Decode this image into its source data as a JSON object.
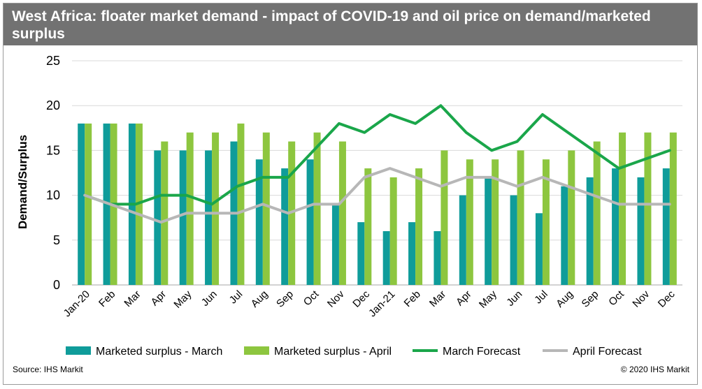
{
  "header": {
    "title": "West Africa: floater market demand - impact of COVID-19 and oil price on demand/marketed surplus"
  },
  "footer": {
    "source": "Source: IHS Markit",
    "copyright": "© 2020 IHS Markit"
  },
  "colors": {
    "title_bg": "#727272",
    "surplus_march": "#0F9C9A",
    "surplus_april": "#8DC63F",
    "march_forecast": "#1AA64A",
    "april_forecast": "#B7B7B7",
    "gridline": "#D9D9D9"
  },
  "chart_data": {
    "type": "bar",
    "ylabel": "Demand/Surplus",
    "xlabel": "",
    "ylim": [
      0,
      25
    ],
    "yticks": [
      0,
      5,
      10,
      15,
      20,
      25
    ],
    "grid": true,
    "legend_position": "bottom",
    "categories": [
      "Jan-20",
      "Feb",
      "Mar",
      "Apr",
      "May",
      "Jun",
      "Jul",
      "Aug",
      "Sep",
      "Oct",
      "Nov",
      "Dec",
      "Jan-21",
      "Feb",
      "Mar",
      "Apr",
      "May",
      "Jun",
      "Jul",
      "Aug",
      "Sep",
      "Oct",
      "Nov",
      "Dec"
    ],
    "series": [
      {
        "name": "Marketed surplus - March",
        "kind": "bar",
        "color": "#0F9C9A",
        "values": [
          18,
          18,
          18,
          15,
          15,
          15,
          16,
          14,
          13,
          14,
          9,
          7,
          6,
          7,
          6,
          10,
          12,
          10,
          8,
          11,
          12,
          13,
          12,
          13
        ]
      },
      {
        "name": "Marketed surplus - April",
        "kind": "bar",
        "color": "#8DC63F",
        "values": [
          18,
          18,
          18,
          16,
          17,
          17,
          18,
          17,
          16,
          17,
          16,
          13,
          12,
          13,
          15,
          14,
          14,
          15,
          14,
          15,
          16,
          17,
          17,
          17
        ]
      },
      {
        "name": "March Forecast",
        "kind": "line",
        "color": "#1AA64A",
        "values": [
          10,
          9,
          9,
          10,
          10,
          9,
          11,
          12,
          12,
          15,
          18,
          17,
          19,
          18,
          20,
          17,
          15,
          16,
          19,
          17,
          15,
          13,
          14,
          15
        ]
      },
      {
        "name": "April Forecast",
        "kind": "line",
        "color": "#B7B7B7",
        "values": [
          10,
          9,
          8,
          7,
          8,
          8,
          8,
          9,
          8,
          9,
          9,
          12,
          13,
          12,
          11,
          12,
          12,
          11,
          12,
          11,
          10,
          9,
          9,
          9
        ]
      }
    ]
  }
}
